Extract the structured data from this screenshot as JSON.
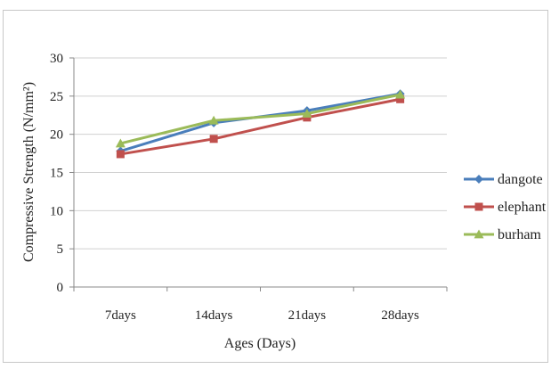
{
  "chart_data": {
    "type": "line",
    "categories": [
      "7days",
      "14days",
      "21days",
      "28days"
    ],
    "xlabel": "Ages (Days)",
    "ylabel": "Compressive Strength (N/mm²)",
    "ylim": [
      0,
      30
    ],
    "yticks": [
      0,
      5,
      10,
      15,
      20,
      25,
      30
    ],
    "grid": true,
    "legend": "right",
    "series": [
      {
        "name": "dangote",
        "color": "#4a7ebb",
        "marker": "diamond",
        "values": [
          17.8,
          21.5,
          23.1,
          25.3
        ]
      },
      {
        "name": "elephant",
        "color": "#c0504d",
        "marker": "square",
        "values": [
          17.4,
          19.4,
          22.2,
          24.6
        ]
      },
      {
        "name": "burham",
        "color": "#9bbb59",
        "marker": "triangle",
        "values": [
          18.8,
          21.8,
          22.7,
          25.2
        ]
      }
    ]
  }
}
